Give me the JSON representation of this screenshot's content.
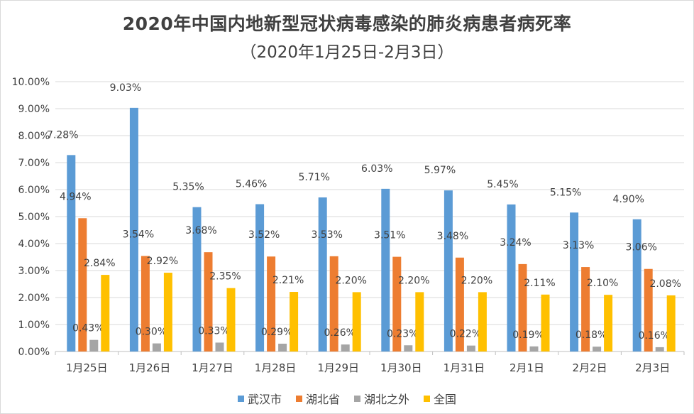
{
  "chart_data": {
    "type": "bar",
    "title": "2020年中国内地新型冠状病毒感染的肺炎病患者病死率",
    "subtitle": "（2020年1月25日-2月3日）",
    "categories": [
      "1月25日",
      "1月26日",
      "1月27日",
      "1月28日",
      "1月29日",
      "1月30日",
      "1月31日",
      "2月1日",
      "2月2日",
      "2月3日"
    ],
    "series": [
      {
        "name": "武汉市",
        "color": "#5b9bd5",
        "values": [
          7.28,
          9.03,
          5.35,
          5.46,
          5.71,
          6.03,
          5.97,
          5.45,
          5.15,
          4.9
        ],
        "labels": [
          "7.28%",
          "9.03%",
          "5.35%",
          "5.46%",
          "5.71%",
          "6.03%",
          "5.97%",
          "5.45%",
          "5.15%",
          "4.90%"
        ]
      },
      {
        "name": "湖北省",
        "color": "#ed7d31",
        "values": [
          4.94,
          3.54,
          3.68,
          3.52,
          3.53,
          3.51,
          3.48,
          3.24,
          3.13,
          3.06
        ],
        "labels": [
          "4.94%",
          "3.54%",
          "3.68%",
          "3.52%",
          "3.53%",
          "3.51%",
          "3.48%",
          "3.24%",
          "3.13%",
          "3.06%"
        ]
      },
      {
        "name": "湖北之外",
        "color": "#a5a5a5",
        "values": [
          0.43,
          0.3,
          0.33,
          0.29,
          0.26,
          0.23,
          0.22,
          0.19,
          0.18,
          0.16
        ],
        "labels": [
          "0.43%",
          "0.30%",
          "0.33%",
          "0.29%",
          "0.26%",
          "0.23%",
          "0.22%",
          "0.19%",
          "0.18%",
          "0.16%"
        ]
      },
      {
        "name": "全国",
        "color": "#ffc000",
        "values": [
          2.84,
          2.92,
          2.35,
          2.21,
          2.2,
          2.2,
          2.2,
          2.11,
          2.1,
          2.08
        ],
        "labels": [
          "2.84%",
          "2.92%",
          "2.35%",
          "2.21%",
          "2.20%",
          "2.20%",
          "2.20%",
          "2.11%",
          "2.10%",
          "2.08%"
        ]
      }
    ],
    "ylim": [
      0,
      10
    ],
    "yticks": [
      "0.00%",
      "1.00%",
      "2.00%",
      "3.00%",
      "4.00%",
      "5.00%",
      "6.00%",
      "7.00%",
      "8.00%",
      "9.00%",
      "10.00%"
    ],
    "xlabel": "",
    "ylabel": "",
    "grid": true,
    "legend": "bottom"
  }
}
